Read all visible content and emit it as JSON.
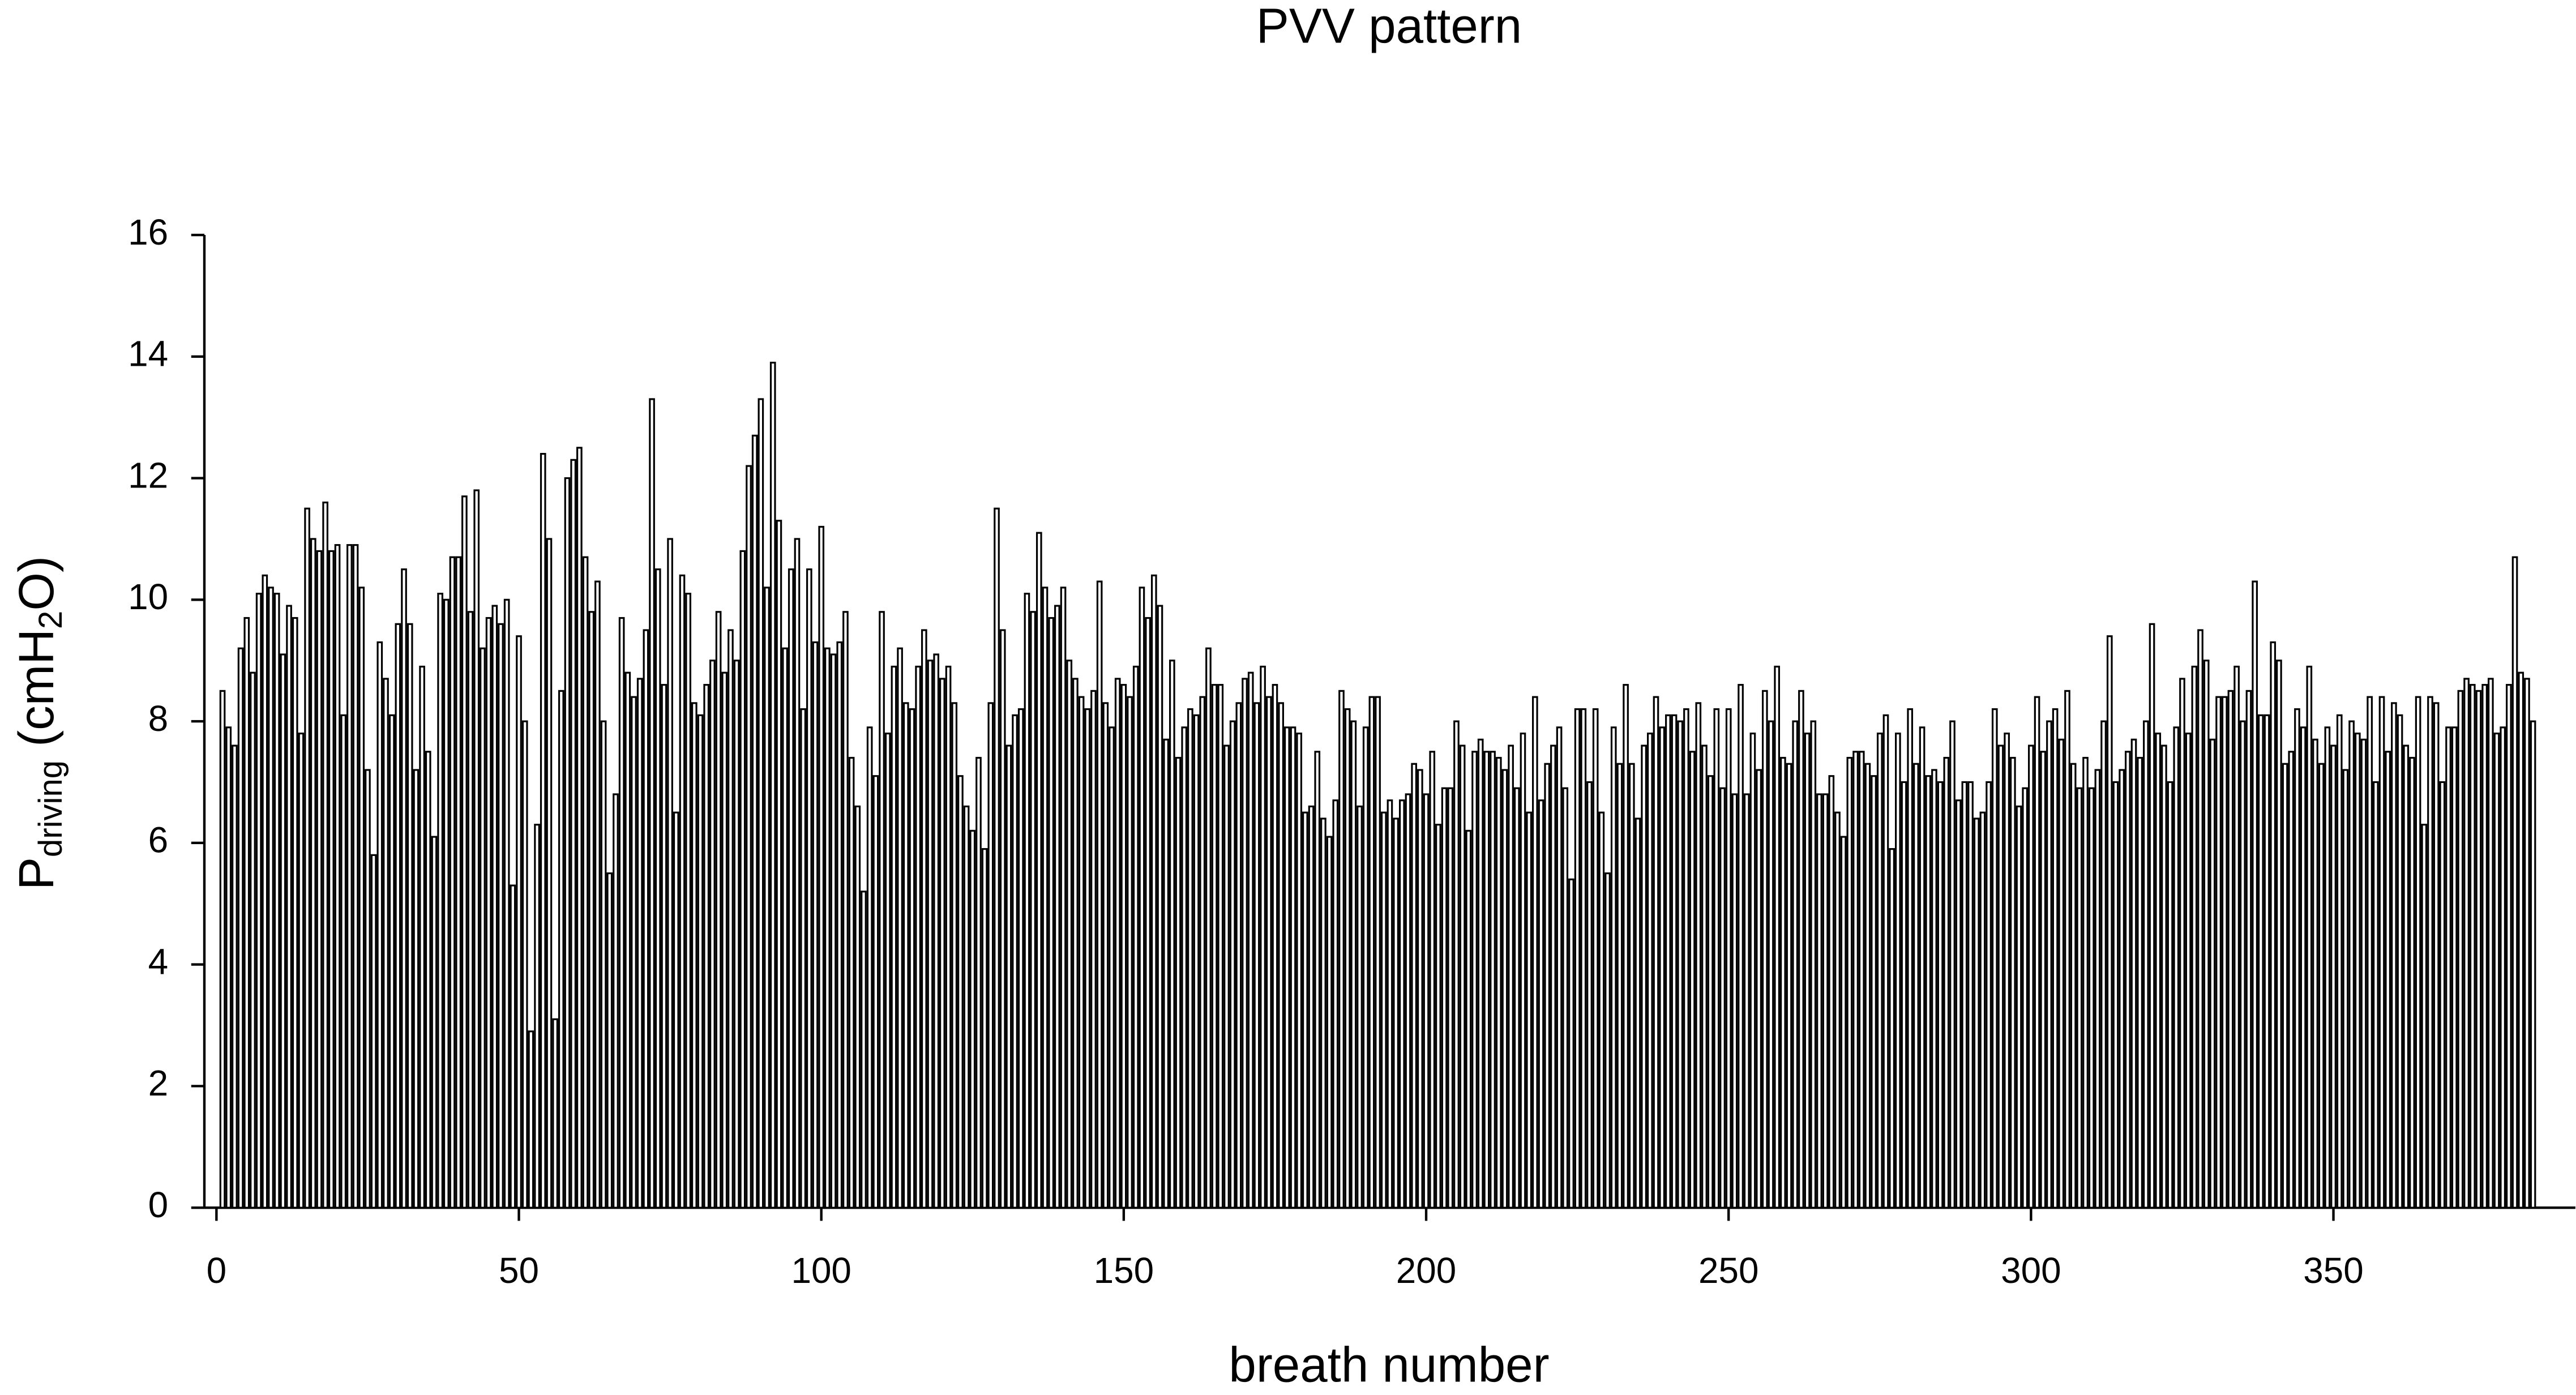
{
  "chart_data": {
    "type": "bar",
    "title": "PVV pattern",
    "x_label": "breath number",
    "y_label": [
      "P",
      "driving",
      " (cmH",
      "2",
      "O)"
    ],
    "color": "#000000",
    "grid": false,
    "xlim": [
      -2,
      390
    ],
    "xticks": [
      0,
      50,
      100,
      150,
      200,
      250,
      300,
      350
    ],
    "ylim": [
      0,
      16
    ],
    "yticks": [
      0,
      2,
      4,
      6,
      8,
      10,
      12,
      14,
      16
    ],
    "x": [
      1,
      2,
      3,
      4,
      5,
      6,
      7,
      8,
      9,
      10,
      11,
      12,
      13,
      14,
      15,
      16,
      17,
      18,
      19,
      20,
      21,
      22,
      23,
      24,
      25,
      26,
      27,
      28,
      29,
      30,
      31,
      32,
      33,
      34,
      35,
      36,
      37,
      38,
      39,
      40,
      41,
      42,
      43,
      44,
      45,
      46,
      47,
      48,
      49,
      50,
      51,
      52,
      53,
      54,
      55,
      56,
      57,
      58,
      59,
      60,
      61,
      62,
      63,
      64,
      65,
      66,
      67,
      68,
      69,
      70,
      71,
      72,
      73,
      74,
      75,
      76,
      77,
      78,
      79,
      80,
      81,
      82,
      83,
      84,
      85,
      86,
      87,
      88,
      89,
      90,
      91,
      92,
      93,
      94,
      95,
      96,
      97,
      98,
      99,
      100,
      101,
      102,
      103,
      104,
      105,
      106,
      107,
      108,
      109,
      110,
      111,
      112,
      113,
      114,
      115,
      116,
      117,
      118,
      119,
      120,
      121,
      122,
      123,
      124,
      125,
      126,
      127,
      128,
      129,
      130,
      131,
      132,
      133,
      134,
      135,
      136,
      137,
      138,
      139,
      140,
      141,
      142,
      143,
      144,
      145,
      146,
      147,
      148,
      149,
      150,
      151,
      152,
      153,
      154,
      155,
      156,
      157,
      158,
      159,
      160,
      161,
      162,
      163,
      164,
      165,
      166,
      167,
      168,
      169,
      170,
      171,
      172,
      173,
      174,
      175,
      176,
      177,
      178,
      179,
      180,
      181,
      182,
      183,
      184,
      185,
      186,
      187,
      188,
      189,
      190,
      191,
      192,
      193,
      194,
      195,
      196,
      197,
      198,
      199,
      200,
      201,
      202,
      203,
      204,
      205,
      206,
      207,
      208,
      209,
      210,
      211,
      212,
      213,
      214,
      215,
      216,
      217,
      218,
      219,
      220,
      221,
      222,
      223,
      224,
      225,
      226,
      227,
      228,
      229,
      230,
      231,
      232,
      233,
      234,
      235,
      236,
      237,
      238,
      239,
      240,
      241,
      242,
      243,
      244,
      245,
      246,
      247,
      248,
      249,
      250,
      251,
      252,
      253,
      254,
      255,
      256,
      257,
      258,
      259,
      260,
      261,
      262,
      263,
      264,
      265,
      266,
      267,
      268,
      269,
      270,
      271,
      272,
      273,
      274,
      275,
      276,
      277,
      278,
      279,
      280,
      281,
      282,
      283,
      284,
      285,
      286,
      287,
      288,
      289,
      290,
      291,
      292,
      293,
      294,
      295,
      296,
      297,
      298,
      299,
      300,
      301,
      302,
      303,
      304,
      305,
      306,
      307,
      308,
      309,
      310,
      311,
      312,
      313,
      314,
      315,
      316,
      317,
      318,
      319,
      320,
      321,
      322,
      323,
      324,
      325,
      326,
      327,
      328,
      329,
      330,
      331,
      332,
      333,
      334,
      335,
      336,
      337,
      338,
      339,
      340,
      341,
      342,
      343,
      344,
      345,
      346,
      347,
      348,
      349,
      350,
      351,
      352,
      353,
      354,
      355,
      356,
      357,
      358,
      359,
      360,
      361,
      362,
      363,
      364,
      365,
      366,
      367,
      368,
      369,
      370,
      371,
      372,
      373,
      374,
      375,
      376,
      377,
      378,
      379,
      380,
      381,
      382,
      383
    ],
    "values": [
      8.5,
      7.9,
      7.6,
      9.2,
      9.7,
      8.8,
      10.1,
      10.4,
      10.2,
      10.1,
      9.1,
      9.9,
      9.7,
      7.8,
      11.5,
      11.0,
      10.8,
      11.6,
      10.8,
      10.9,
      8.1,
      10.9,
      10.9,
      10.2,
      7.2,
      5.8,
      9.3,
      8.7,
      8.1,
      9.6,
      10.5,
      9.6,
      7.2,
      8.9,
      7.5,
      6.1,
      10.1,
      10.0,
      10.7,
      10.7,
      11.7,
      9.8,
      11.8,
      9.2,
      9.7,
      9.9,
      9.6,
      10.0,
      5.3,
      9.4,
      8.0,
      2.9,
      6.3,
      12.4,
      11.0,
      3.1,
      8.5,
      12.0,
      12.3,
      12.5,
      10.7,
      9.8,
      10.3,
      8.0,
      5.5,
      6.8,
      9.7,
      8.8,
      8.4,
      8.7,
      9.5,
      13.3,
      10.5,
      8.6,
      11.0,
      6.5,
      10.4,
      10.1,
      8.3,
      8.1,
      8.6,
      9.0,
      9.8,
      8.8,
      9.5,
      9.0,
      10.8,
      12.2,
      12.7,
      13.3,
      10.2,
      13.9,
      11.3,
      9.2,
      10.5,
      11.0,
      8.2,
      10.5,
      9.3,
      11.2,
      9.2,
      9.1,
      9.3,
      9.8,
      7.4,
      6.6,
      5.2,
      7.9,
      7.1,
      9.8,
      7.8,
      8.9,
      9.2,
      8.3,
      8.2,
      8.9,
      9.5,
      9.0,
      9.1,
      8.7,
      8.9,
      8.3,
      7.1,
      6.6,
      6.2,
      7.4,
      5.9,
      8.3,
      11.5,
      9.5,
      7.6,
      8.1,
      8.2,
      10.1,
      9.8,
      11.1,
      10.2,
      9.7,
      9.9,
      10.2,
      9.0,
      8.7,
      8.4,
      8.2,
      8.5,
      10.3,
      8.3,
      7.9,
      8.7,
      8.6,
      8.4,
      8.9,
      10.2,
      9.7,
      10.4,
      9.9,
      7.7,
      9.0,
      7.4,
      7.9,
      8.2,
      8.1,
      8.4,
      9.2,
      8.6,
      8.6,
      7.6,
      8.0,
      8.3,
      8.7,
      8.8,
      8.3,
      8.9,
      8.4,
      8.6,
      8.3,
      7.9,
      7.9,
      7.8,
      6.5,
      6.6,
      7.5,
      6.4,
      6.1,
      6.7,
      8.5,
      8.2,
      8.0,
      6.6,
      7.9,
      8.4,
      8.4,
      6.5,
      6.7,
      6.4,
      6.7,
      6.8,
      7.3,
      7.2,
      6.8,
      7.5,
      6.3,
      6.9,
      6.9,
      8.0,
      7.6,
      6.2,
      7.5,
      7.7,
      7.5,
      7.5,
      7.4,
      7.2,
      7.6,
      6.9,
      7.8,
      6.5,
      8.4,
      6.7,
      7.3,
      7.6,
      7.9,
      6.9,
      5.4,
      8.2,
      8.2,
      7.0,
      8.2,
      6.5,
      5.5,
      7.9,
      7.3,
      8.6,
      7.3,
      6.4,
      7.6,
      7.8,
      8.4,
      7.9,
      8.1,
      8.1,
      8.0,
      8.2,
      7.5,
      8.3,
      7.6,
      7.1,
      8.2,
      6.9,
      8.2,
      6.8,
      8.6,
      6.8,
      7.8,
      7.2,
      8.5,
      8.0,
      8.9,
      7.4,
      7.3,
      8.0,
      8.5,
      7.8,
      8.0,
      6.8,
      6.8,
      7.1,
      6.5,
      6.1,
      7.4,
      7.5,
      7.5,
      7.3,
      7.1,
      7.8,
      8.1,
      5.9,
      7.8,
      7.0,
      8.2,
      7.3,
      7.9,
      7.1,
      7.2,
      7.0,
      7.4,
      8.0,
      6.7,
      7.0,
      7.0,
      6.4,
      6.5,
      7.0,
      8.2,
      7.6,
      7.8,
      7.4,
      6.6,
      6.9,
      7.6,
      8.4,
      7.5,
      8.0,
      8.2,
      7.7,
      8.5,
      7.3,
      6.9,
      7.4,
      6.9,
      7.2,
      8.0,
      9.4,
      7.0,
      7.2,
      7.5,
      7.7,
      7.4,
      8.0,
      9.6,
      7.8,
      7.6,
      7.0,
      7.9,
      8.7,
      7.8,
      8.9,
      9.5,
      9.0,
      7.7,
      8.4,
      8.4,
      8.5,
      8.9,
      8.0,
      8.5,
      10.3,
      8.1,
      8.1,
      9.3,
      9.0,
      7.3,
      7.5,
      8.2,
      7.9,
      8.9,
      7.7,
      7.3,
      7.9,
      7.6,
      8.1,
      7.2,
      8.0,
      7.8,
      7.7,
      8.4,
      7.0,
      8.4,
      7.5,
      8.3,
      8.1,
      7.6,
      7.4,
      8.4,
      6.3,
      8.4,
      8.3,
      7.0,
      7.9,
      7.9,
      8.5,
      8.7,
      8.6,
      8.5,
      8.6,
      8.7,
      7.8,
      7.9,
      8.6,
      10.7,
      8.8,
      8.7,
      8.0
    ]
  }
}
